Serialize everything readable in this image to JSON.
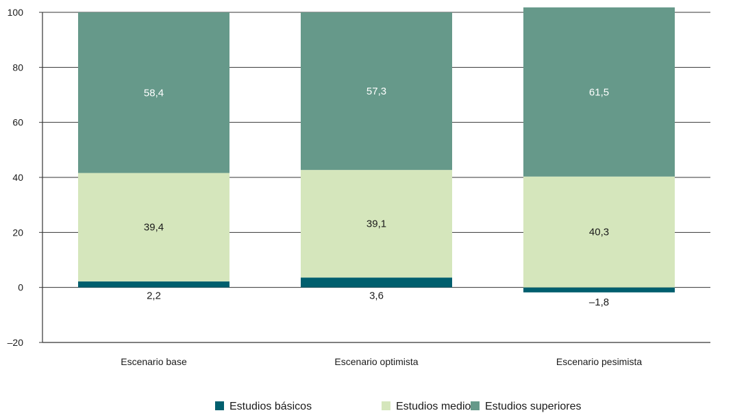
{
  "chart_data": {
    "type": "bar",
    "stacked": true,
    "categories": [
      "Escenario base",
      "Escenario optimista",
      "Escenario pesimista"
    ],
    "series": [
      {
        "name": "Estudios básicos",
        "values": [
          2.2,
          3.6,
          -1.8
        ],
        "labels": [
          "2,2",
          "3,6",
          "–1,8"
        ],
        "color": "#005f6e"
      },
      {
        "name": "Estudios medios",
        "values": [
          39.4,
          39.1,
          40.3
        ],
        "labels": [
          "39,4",
          "39,1",
          "40,3"
        ],
        "color": "#d5e6bc"
      },
      {
        "name": "Estudios superiores",
        "values": [
          58.4,
          57.3,
          61.5
        ],
        "labels": [
          "58,4",
          "57,3",
          "61,5"
        ],
        "color": "#66998a"
      }
    ],
    "yticks": [
      100,
      80,
      60,
      40,
      20,
      0,
      -20
    ],
    "ytick_labels": [
      "100",
      "80",
      "60",
      "40",
      "20",
      "0",
      "–20"
    ],
    "ylim": [
      -20,
      100
    ],
    "grid": true,
    "legend": "bottom",
    "title": "",
    "xlabel": "",
    "ylabel": ""
  }
}
